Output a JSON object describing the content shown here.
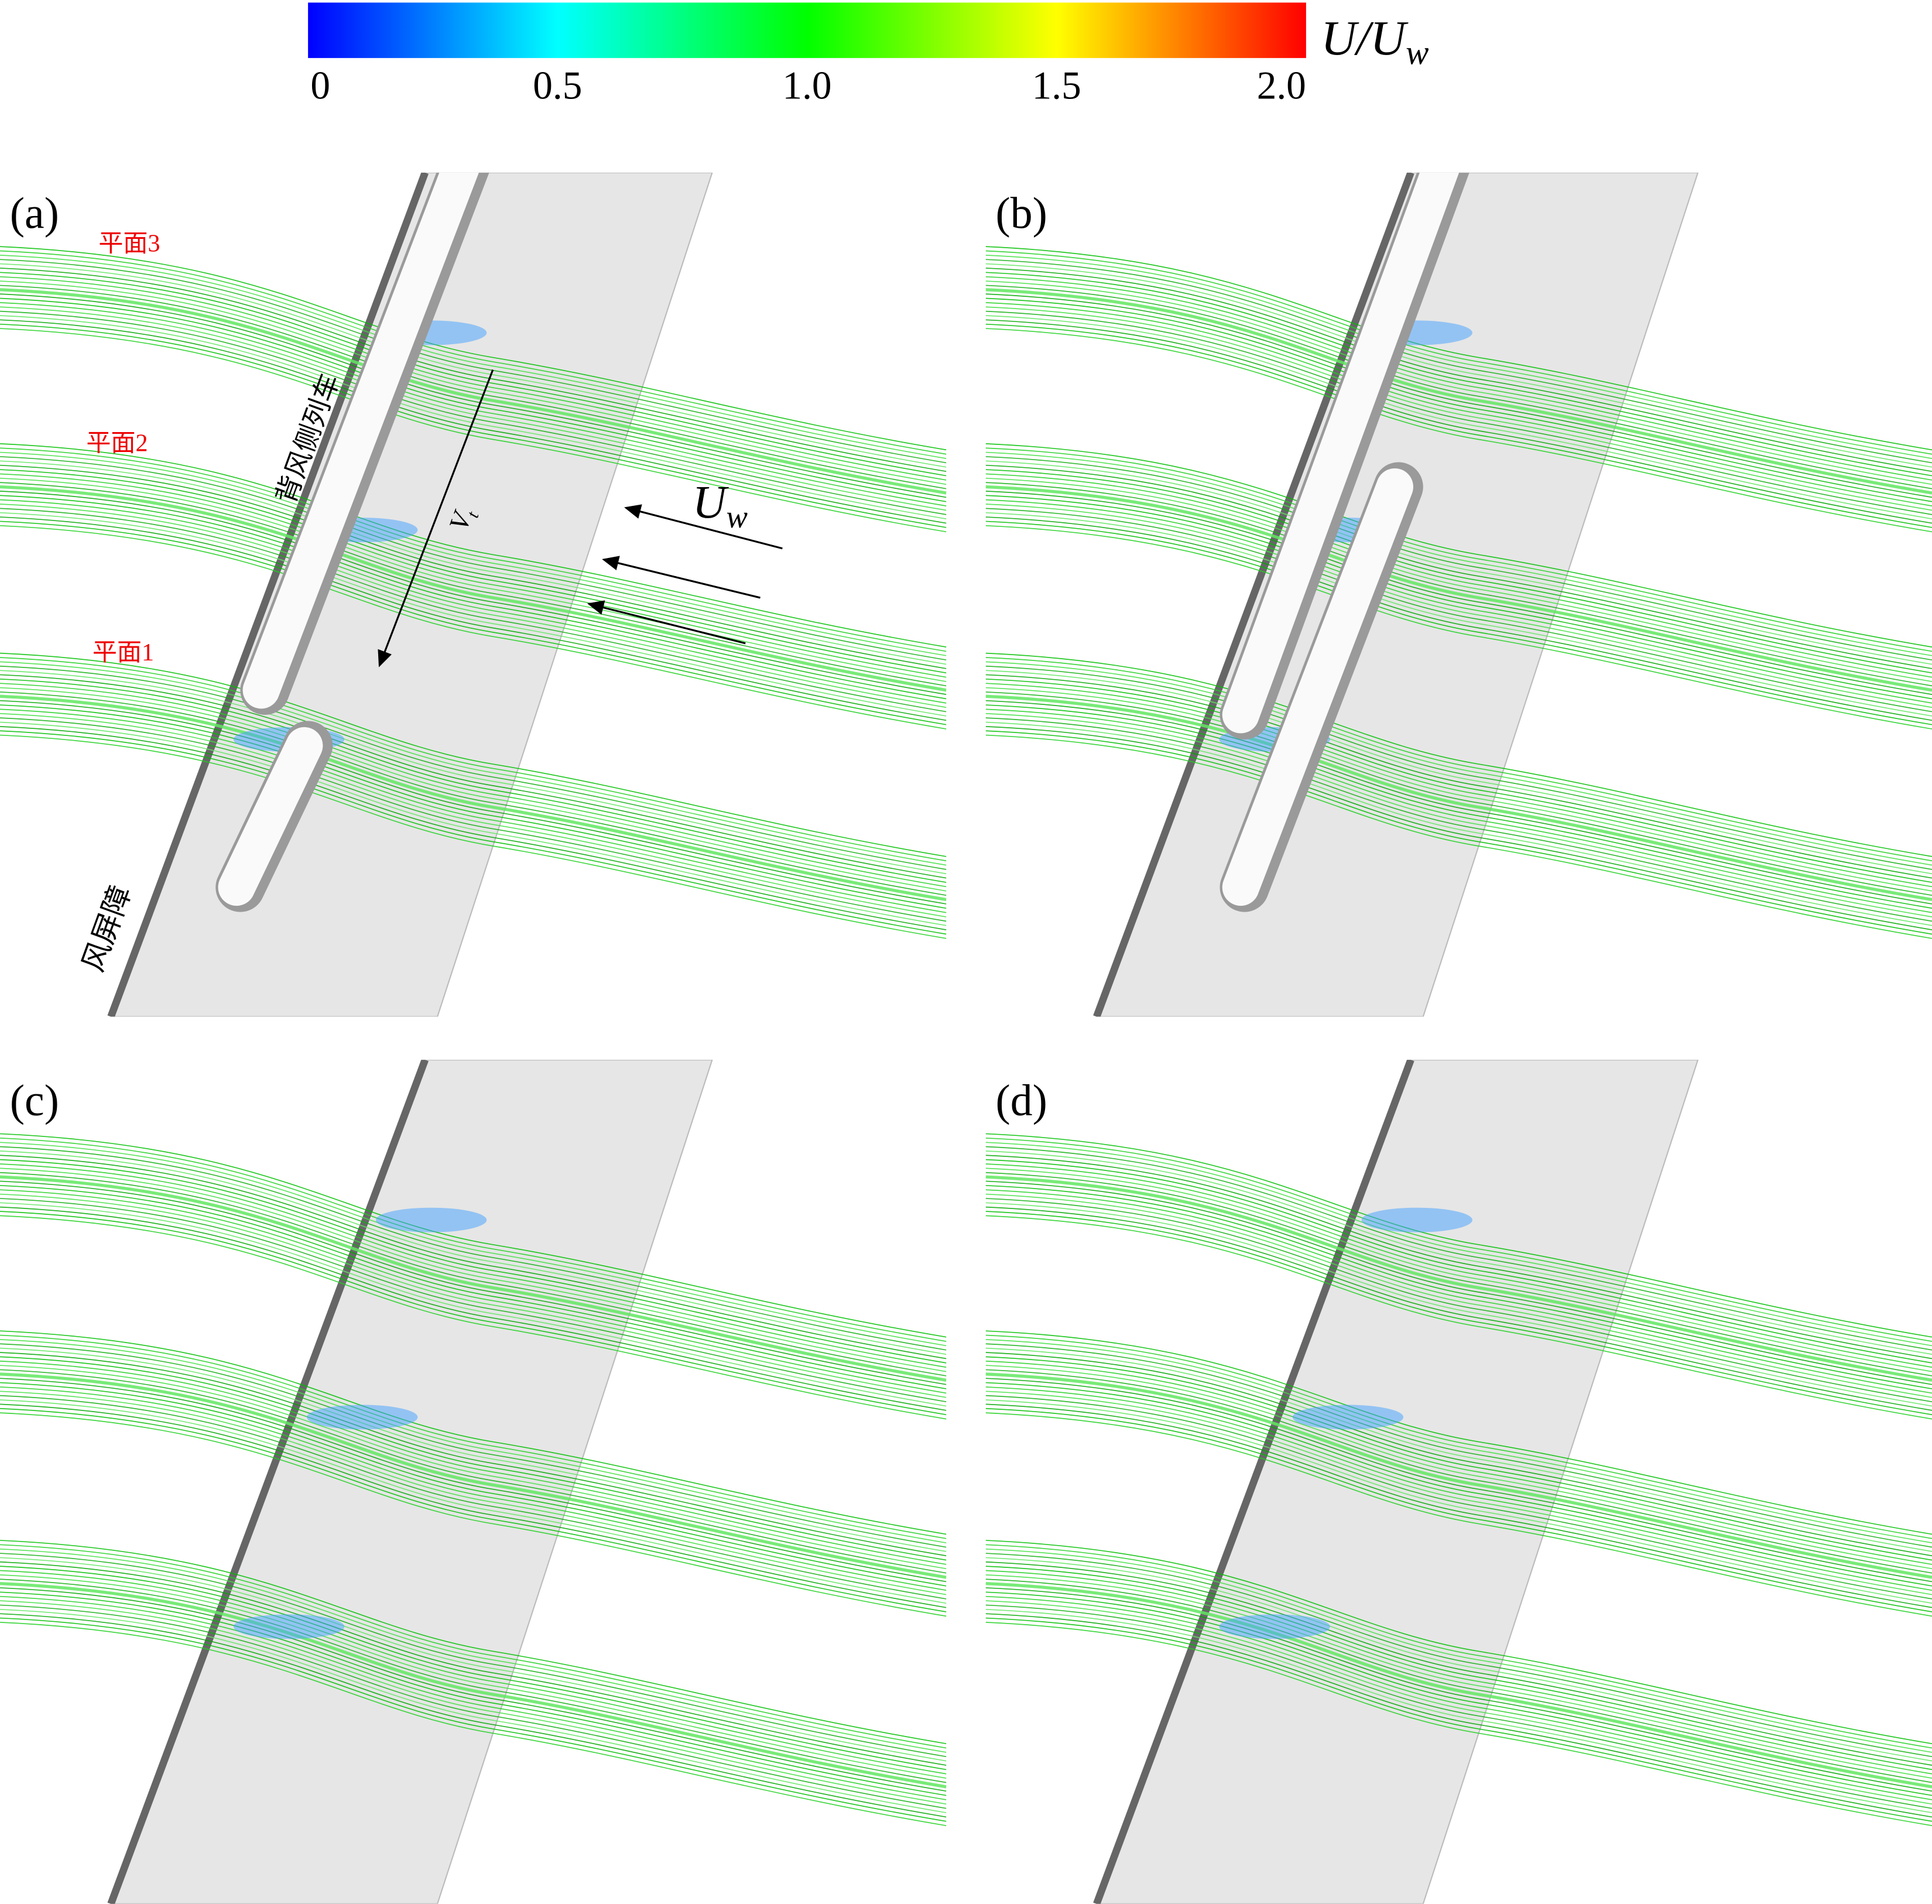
{
  "colorbar": {
    "label": "U/U",
    "label_subscript": "w",
    "range": [
      0,
      2
    ],
    "ticks": [
      0,
      0.5,
      {
        "value": 1,
        "label": "1.0"
      },
      1.5,
      {
        "value": 2,
        "label": "2.0"
      }
    ]
  },
  "panels": [
    {
      "label": "(a)"
    },
    {
      "label": "(b)"
    },
    {
      "label": "(c)"
    },
    {
      "label": "(d)"
    }
  ],
  "annotations": {
    "planes": [
      "平面3",
      "平面2",
      "平面1"
    ],
    "leeward_train": "背风侧列车",
    "wind_barrier": "风屏障",
    "train_speed": {
      "symbol": "V",
      "subscript": "t"
    },
    "wind_speed": {
      "symbol": "U",
      "subscript": "w"
    }
  }
}
